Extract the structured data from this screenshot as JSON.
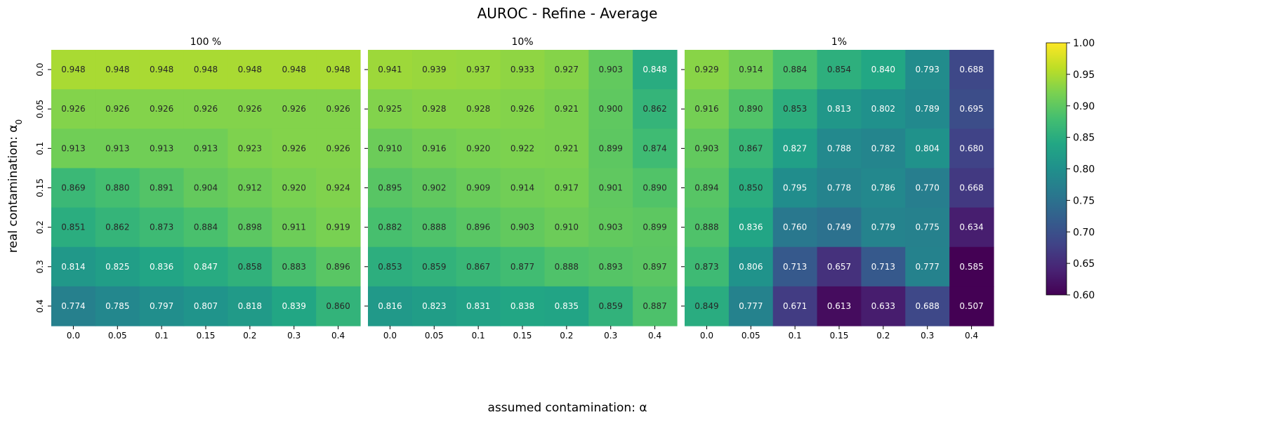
{
  "chart_data": {
    "type": "heatmap",
    "title": "AUROC - Refine - Average",
    "xlabel": "assumed contamination: α",
    "ylabel": "real contamination: α",
    "ylabel_subscript": "0",
    "x_categories": [
      "0.0",
      "0.05",
      "0.1",
      "0.15",
      "0.2",
      "0.3",
      "0.4"
    ],
    "y_categories": [
      "0.0",
      "0.05",
      "0.1",
      "0.15",
      "0.2",
      "0.3",
      "0.4"
    ],
    "colormap": "viridis",
    "color_range": [
      0.6,
      1.0
    ],
    "colorbar_ticks": [
      "0.60",
      "0.65",
      "0.70",
      "0.75",
      "0.80",
      "0.85",
      "0.90",
      "0.95",
      "1.00"
    ],
    "panels": [
      {
        "title": "100 %",
        "values": [
          [
            0.948,
            0.948,
            0.948,
            0.948,
            0.948,
            0.948,
            0.948
          ],
          [
            0.926,
            0.926,
            0.926,
            0.926,
            0.926,
            0.926,
            0.926
          ],
          [
            0.913,
            0.913,
            0.913,
            0.913,
            0.923,
            0.926,
            0.926
          ],
          [
            0.869,
            0.88,
            0.891,
            0.904,
            0.912,
            0.92,
            0.924
          ],
          [
            0.851,
            0.862,
            0.873,
            0.884,
            0.898,
            0.911,
            0.919
          ],
          [
            0.814,
            0.825,
            0.836,
            0.847,
            0.858,
            0.883,
            0.896
          ],
          [
            0.774,
            0.785,
            0.797,
            0.807,
            0.818,
            0.839,
            0.86
          ]
        ]
      },
      {
        "title": "10%",
        "values": [
          [
            0.941,
            0.939,
            0.937,
            0.933,
            0.927,
            0.903,
            0.848
          ],
          [
            0.925,
            0.928,
            0.928,
            0.926,
            0.921,
            0.9,
            0.862
          ],
          [
            0.91,
            0.916,
            0.92,
            0.922,
            0.921,
            0.899,
            0.874
          ],
          [
            0.895,
            0.902,
            0.909,
            0.914,
            0.917,
            0.901,
            0.89
          ],
          [
            0.882,
            0.888,
            0.896,
            0.903,
            0.91,
            0.903,
            0.899
          ],
          [
            0.853,
            0.859,
            0.867,
            0.877,
            0.888,
            0.893,
            0.897
          ],
          [
            0.816,
            0.823,
            0.831,
            0.838,
            0.835,
            0.859,
            0.887
          ]
        ]
      },
      {
        "title": "1%",
        "values": [
          [
            0.929,
            0.914,
            0.884,
            0.854,
            0.84,
            0.793,
            0.688
          ],
          [
            0.916,
            0.89,
            0.853,
            0.813,
            0.802,
            0.789,
            0.695
          ],
          [
            0.903,
            0.867,
            0.827,
            0.788,
            0.782,
            0.804,
            0.68
          ],
          [
            0.894,
            0.85,
            0.795,
            0.778,
            0.786,
            0.77,
            0.668
          ],
          [
            0.888,
            0.836,
            0.76,
            0.749,
            0.779,
            0.775,
            0.634
          ],
          [
            0.873,
            0.806,
            0.713,
            0.657,
            0.713,
            0.777,
            0.585
          ],
          [
            0.849,
            0.777,
            0.671,
            0.613,
            0.633,
            0.688,
            0.507
          ]
        ]
      }
    ]
  }
}
